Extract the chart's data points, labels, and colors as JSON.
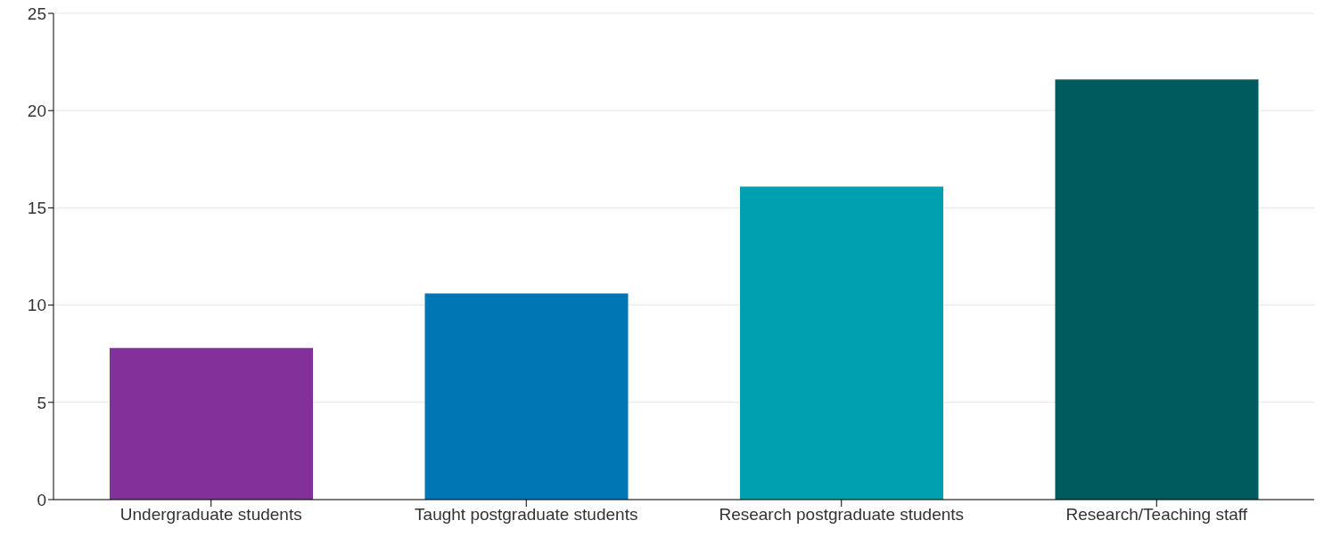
{
  "chart_data": {
    "type": "bar",
    "categories": [
      "Undergraduate students",
      "Taught postgraduate students",
      "Research postgraduate students",
      "Research/Teaching staff"
    ],
    "values": [
      7.8,
      10.6,
      16.1,
      21.6
    ],
    "colors": [
      "#84309a",
      "#0077b5",
      "#00a0b0",
      "#005b5e"
    ],
    "ylim": [
      0,
      25
    ],
    "yticks": [
      0,
      5,
      10,
      15,
      20,
      25
    ],
    "grid": "y"
  }
}
